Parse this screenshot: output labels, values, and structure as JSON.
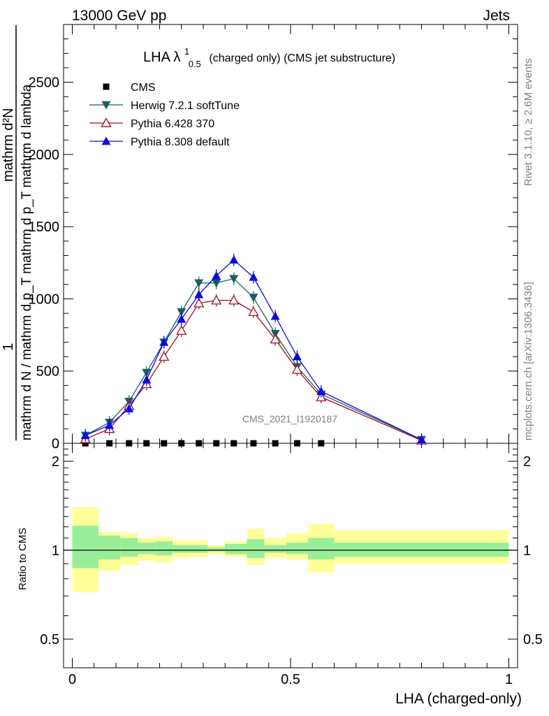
{
  "header": {
    "left": "13000 GeV pp",
    "right": "Jets"
  },
  "side_labels": {
    "rivet": "Rivet 3.1.10, ≥ 2.6M events",
    "mcplots": "mcplots.cern.ch [arXiv:1306.3436]"
  },
  "plot_title": {
    "main": "LHA λ",
    "sup": "1",
    "sub": "0.5",
    "rest": "(charged only) (CMS jet substructure)"
  },
  "watermark": "CMS_2021_I1920187",
  "ylabel_top": {
    "one": "1",
    "num": "mathrm d²N",
    "den": "mathrm d N / mathrm d p_T mathrm d p_T mathrm d lambda"
  },
  "ylabel_bottom": "Ratio to CMS",
  "xlabel": "LHA (charged-only)",
  "legend": [
    {
      "label": "CMS",
      "color": "#000000",
      "marker": "square"
    },
    {
      "label": "Herwig 7.2.1 softTune",
      "color": "#1b5e62",
      "marker": "triangle-down"
    },
    {
      "label": "Pythia 6.428 370",
      "color": "#a01020",
      "marker": "triangle-up-open"
    },
    {
      "label": "Pythia 8.308 default",
      "color": "#0a0ae0",
      "marker": "triangle-up"
    }
  ],
  "chart_data": {
    "type": "line",
    "title": "LHA λ^1_0.5 (charged only) (CMS jet substructure)",
    "xlabel": "LHA (charged-only)",
    "xlim": [
      -0.02,
      1.02
    ],
    "ylim": [
      0,
      2900
    ],
    "y_ticks": [
      0,
      500,
      1000,
      1500,
      2000,
      2500
    ],
    "x_ticks": [
      0,
      0.5,
      1
    ],
    "x_tick_labels": [
      "0",
      "0.5",
      "1"
    ],
    "x": [
      0.03,
      0.085,
      0.13,
      0.17,
      0.21,
      0.25,
      0.29,
      0.33,
      0.37,
      0.415,
      0.465,
      0.515,
      0.57,
      0.8
    ],
    "series": [
      {
        "name": "CMS",
        "values": [
          0,
          0,
          0,
          0,
          0,
          0,
          0,
          0,
          0,
          0,
          0,
          0,
          0,
          null
        ]
      },
      {
        "name": "Herwig 7.2.1 softTune",
        "values": [
          55,
          145,
          290,
          490,
          700,
          910,
          1110,
          1110,
          1140,
          1010,
          760,
          530,
          340,
          25
        ]
      },
      {
        "name": "Pythia 6.428 370",
        "values": [
          30,
          100,
          260,
          410,
          600,
          780,
          970,
          990,
          990,
          910,
          720,
          510,
          320,
          20
        ]
      },
      {
        "name": "Pythia 8.308 default",
        "values": [
          55,
          125,
          240,
          440,
          700,
          860,
          1030,
          1160,
          1270,
          1150,
          880,
          600,
          360,
          25
        ]
      }
    ],
    "ratio_panel": {
      "ylabel": "Ratio to CMS",
      "ylim": [
        0.4,
        2.3
      ],
      "y_ticks": [
        0.5,
        1,
        2
      ],
      "y_tick_labels": [
        "0.5",
        "1",
        "2"
      ],
      "bin_edges": [
        0.0,
        0.06,
        0.11,
        0.15,
        0.19,
        0.23,
        0.27,
        0.31,
        0.35,
        0.4,
        0.44,
        0.49,
        0.54,
        0.6,
        1.0
      ],
      "band_inner": [
        [
          0.87,
          1.21
        ],
        [
          0.93,
          1.12
        ],
        [
          0.95,
          1.1
        ],
        [
          0.97,
          1.06
        ],
        [
          0.96,
          1.07
        ],
        [
          0.98,
          1.04
        ],
        [
          0.98,
          1.04
        ],
        [
          0.99,
          1.02
        ],
        [
          0.97,
          1.05
        ],
        [
          0.94,
          1.09
        ],
        [
          0.98,
          1.04
        ],
        [
          0.97,
          1.06
        ],
        [
          0.93,
          1.1
        ],
        [
          0.95,
          1.06
        ]
      ],
      "band_outer": [
        [
          0.72,
          1.4
        ],
        [
          0.85,
          1.15
        ],
        [
          0.89,
          1.14
        ],
        [
          0.92,
          1.1
        ],
        [
          0.91,
          1.11
        ],
        [
          0.94,
          1.08
        ],
        [
          0.95,
          1.08
        ],
        [
          0.97,
          1.04
        ],
        [
          0.95,
          1.07
        ],
        [
          0.89,
          1.18
        ],
        [
          0.94,
          1.1
        ],
        [
          0.93,
          1.14
        ],
        [
          0.84,
          1.23
        ],
        [
          0.9,
          1.17
        ]
      ]
    }
  }
}
